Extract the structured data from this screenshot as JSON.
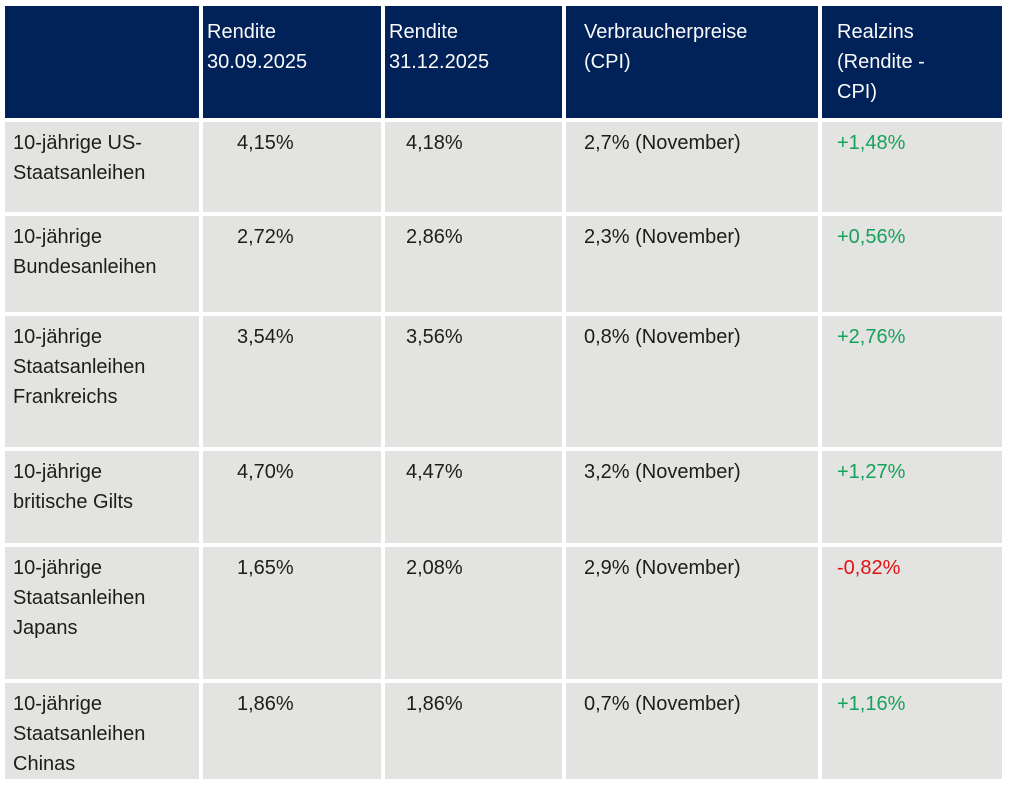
{
  "chart_data": {
    "type": "table",
    "columns": [
      {
        "id": "instrument",
        "label": "",
        "display_label": ""
      },
      {
        "id": "rendite-30-09-2025",
        "label": "Rendite 30.09.2025",
        "display_label": "Rendite\n30.09.2025"
      },
      {
        "id": "rendite-31-12-2025",
        "label": "Rendite 31.12.2025",
        "display_label": "Rendite\n31.12.2025"
      },
      {
        "id": "verbraucherpreise-cpi",
        "label": "Verbraucherpreise (CPI)",
        "display_label": "Verbraucherpreise\n(CPI)"
      },
      {
        "id": "realzins-rendite-minus-cpi",
        "label": "Realzins (Rendite - CPI)",
        "display_label": "Realzins\n(Rendite -\nCPI)"
      }
    ],
    "rows": [
      {
        "instrument": "10-jährige US-Staatsanleihen",
        "instrument_display": "10-jährige US-\nStaatsanleihen",
        "rendite_30_09_2025": "4,15%",
        "rendite_31_12_2025": "4,18%",
        "verbraucherpreise_cpi": "2,7% (November)",
        "realzins": "+1,48%",
        "realzins_trend": "positive"
      },
      {
        "instrument": "10-jährige Bundesanleihen",
        "instrument_display": "10-jährige\nBundesanleihen",
        "rendite_30_09_2025": "2,72%",
        "rendite_31_12_2025": "2,86%",
        "verbraucherpreise_cpi": "2,3% (November)",
        "realzins": "+0,56%",
        "realzins_trend": "positive"
      },
      {
        "instrument": "10-jährige Staatsanleihen Frankreichs",
        "instrument_display": "10-jährige\nStaatsanleihen\nFrankreichs",
        "rendite_30_09_2025": "3,54%",
        "rendite_31_12_2025": "3,56%",
        "verbraucherpreise_cpi": "0,8% (November)",
        "realzins": "+2,76%",
        "realzins_trend": "positive"
      },
      {
        "instrument": "10-jährige britische Gilts",
        "instrument_display": "10-jährige\nbritische Gilts",
        "rendite_30_09_2025": "4,70%",
        "rendite_31_12_2025": "4,47%",
        "verbraucherpreise_cpi": "3,2% (November)",
        "realzins": "+1,27%",
        "realzins_trend": "positive"
      },
      {
        "instrument": "10-jährige Staatsanleihen Japans",
        "instrument_display": "10-jährige\nStaatsanleihen\nJapans",
        "rendite_30_09_2025": "1,65%",
        "rendite_31_12_2025": "2,08%",
        "verbraucherpreise_cpi": "2,9% (November)",
        "realzins": "-0,82%",
        "realzins_trend": "negative"
      },
      {
        "instrument": "10-jährige Staatsanleihen Chinas",
        "instrument_display": "10-jährige\nStaatsanleihen\nChinas",
        "rendite_30_09_2025": "1,86%",
        "rendite_31_12_2025": "1,86%",
        "verbraucherpreise_cpi": "0,7% (November)",
        "realzins": "+1,16%",
        "realzins_trend": "positive"
      }
    ]
  },
  "colors": {
    "header_background": "#012258",
    "header_text": "#fbfbfb",
    "cell_background": "#e3e3e2",
    "body_text": "#1d1d1b",
    "positive": "#16a259",
    "negative": "#e01212"
  }
}
